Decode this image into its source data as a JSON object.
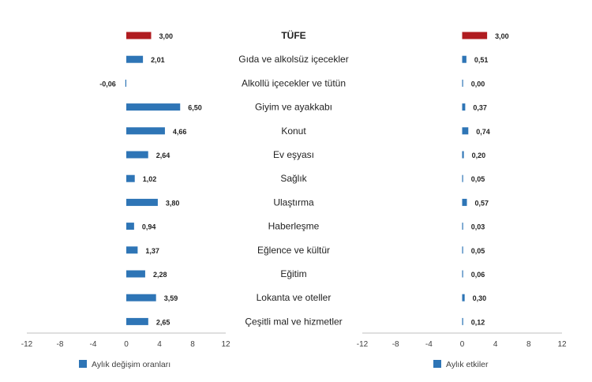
{
  "chart_data": [
    {
      "type": "bar",
      "orientation": "horizontal",
      "categories": [
        "TÜFE",
        "Gıda ve alkolsüz içecekler",
        "Alkollü içecekler ve tütün",
        "Giyim ve ayakkabı",
        "Konut",
        "Ev eşyası",
        "Sağlık",
        "Ulaştırma",
        "Haberleşme",
        "Eğlence ve kültür",
        "Eğitim",
        "Lokanta ve oteller",
        "Çeşitli mal ve hizmetler"
      ],
      "series": [
        {
          "name": "Aylık değişim oranları",
          "values": [
            3.0,
            2.01,
            -0.06,
            6.5,
            4.66,
            2.64,
            1.02,
            3.8,
            0.94,
            1.37,
            2.28,
            3.59,
            2.65
          ]
        }
      ],
      "value_labels": [
        "3,00",
        "2,01",
        "-0,06",
        "6,50",
        "4,66",
        "2,64",
        "1,02",
        "3,80",
        "0,94",
        "1,37",
        "2,28",
        "3,59",
        "2,65"
      ],
      "xlim": [
        -12,
        12
      ],
      "xticks": [
        "-12",
        "-8",
        "-4",
        "0",
        "4",
        "8",
        "12"
      ],
      "grid": false,
      "legend_position": "bottom-left"
    },
    {
      "type": "bar",
      "orientation": "horizontal",
      "categories": [
        "TÜFE",
        "Gıda ve alkolsüz içecekler",
        "Alkollü içecekler ve tütün",
        "Giyim ve ayakkabı",
        "Konut",
        "Ev eşyası",
        "Sağlık",
        "Ulaştırma",
        "Haberleşme",
        "Eğlence ve kültür",
        "Eğitim",
        "Lokanta ve oteller",
        "Çeşitli mal ve hizmetler"
      ],
      "series": [
        {
          "name": "Aylık etkiler",
          "values": [
            3.0,
            0.51,
            0.0,
            0.37,
            0.74,
            0.2,
            0.05,
            0.57,
            0.03,
            0.05,
            0.06,
            0.3,
            0.12
          ]
        }
      ],
      "value_labels": [
        "3,00",
        "0,51",
        "0,00",
        "0,37",
        "0,74",
        "0,20",
        "0,05",
        "0,57",
        "0,03",
        "0,05",
        "0,06",
        "0,30",
        "0,12"
      ],
      "xlim": [
        -12,
        12
      ],
      "xticks": [
        "-12",
        "-8",
        "-4",
        "0",
        "4",
        "8",
        "12"
      ],
      "grid": false,
      "legend_position": "bottom-left"
    }
  ],
  "colors": {
    "highlight": "#b01c20",
    "bar": "#2e75b6",
    "axis": "#bfbfbf",
    "legend_swatch": "#2e75b6"
  }
}
